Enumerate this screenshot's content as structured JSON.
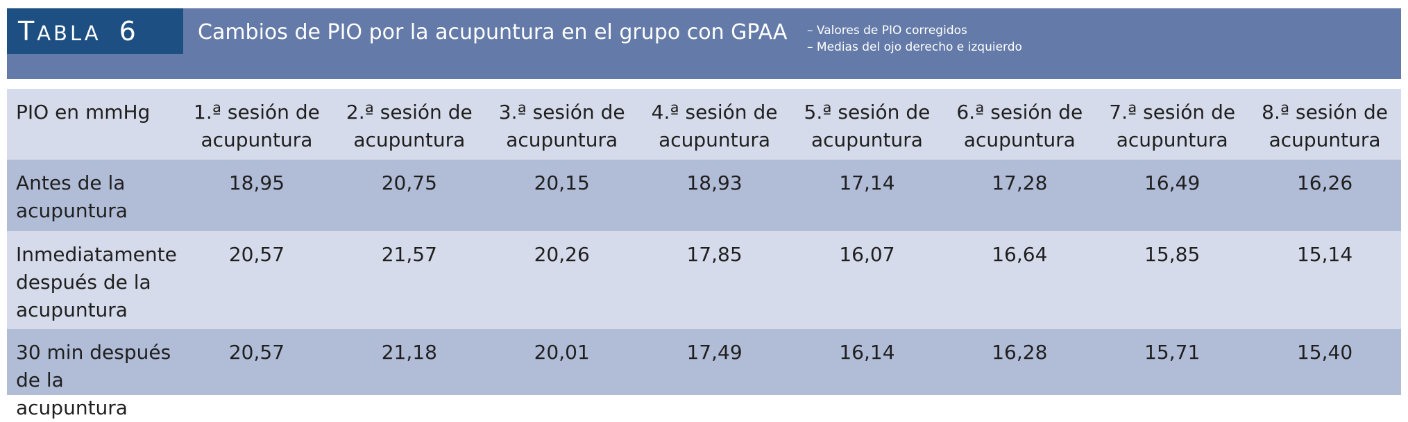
{
  "table_label": {
    "word": "Tabla",
    "number": "6"
  },
  "title": "Cambios de PIO por la acupuntura en el grupo con GPAA",
  "notes": [
    "– Valores de PIO corregidos",
    "– Medias del ojo derecho e izquierdo"
  ],
  "colors": {
    "header_bg": "#647ba9",
    "label_bg": "#1d4f82",
    "row_light": "#d5dbea",
    "row_dark": "#b1bcd7"
  },
  "table": {
    "header": {
      "row_label": "PIO en mmHg",
      "sessions": [
        [
          "1.ª sesión de",
          "acupuntura"
        ],
        [
          "2.ª sesión de",
          "acupuntura"
        ],
        [
          "3.ª sesión de",
          "acupuntura"
        ],
        [
          "4.ª sesión de",
          "acupuntura"
        ],
        [
          "5.ª sesión de",
          "acupuntura"
        ],
        [
          "6.ª sesión de",
          "acupuntura"
        ],
        [
          "7.ª sesión de",
          "acupuntura"
        ],
        [
          "8.ª sesión de",
          "acupuntura"
        ]
      ]
    },
    "rows": [
      {
        "label": [
          "Antes de la",
          "acupuntura"
        ],
        "values": [
          "18,95",
          "20,75",
          "20,15",
          "18,93",
          "17,14",
          "17,28",
          "16,49",
          "16,26"
        ]
      },
      {
        "label": [
          "Inmediatamente",
          "después de la",
          "acupuntura"
        ],
        "values": [
          "20,57",
          "21,57",
          "20,26",
          "17,85",
          "16,07",
          "16,64",
          "15,85",
          "15,14"
        ]
      },
      {
        "label": [
          "30 min después",
          "de la acupuntura"
        ],
        "values": [
          "20,57",
          "21,18",
          "20,01",
          "17,49",
          "16,14",
          "16,28",
          "15,71",
          "15,40"
        ]
      }
    ]
  }
}
